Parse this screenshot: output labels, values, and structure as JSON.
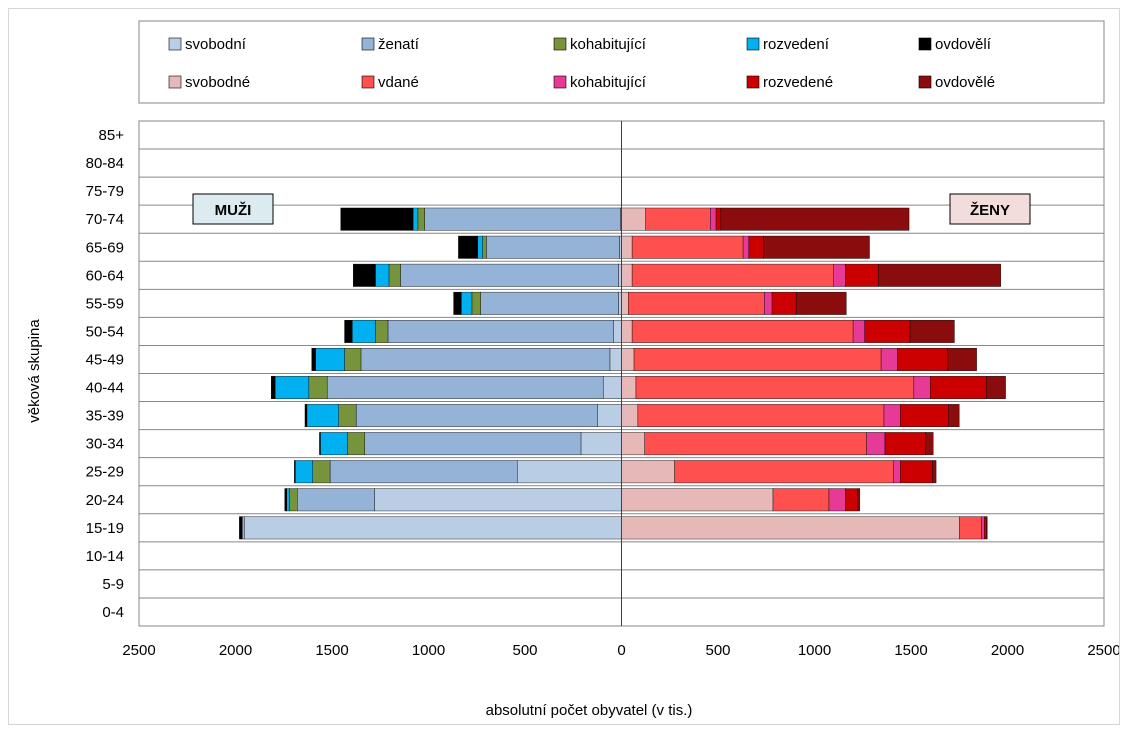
{
  "chart_data": {
    "type": "bar",
    "orientation": "horizontal",
    "stacked": true,
    "xlabel": "absolutní počet obyvatel (v tis.)",
    "ylabel": "věková skupina",
    "xlim": [
      -2500,
      2500
    ],
    "xticks": [
      -2500,
      -2000,
      -1500,
      -1000,
      -500,
      0,
      500,
      1000,
      1500,
      2000,
      2500
    ],
    "xtick_labels": [
      "2500",
      "2000",
      "1500",
      "1000",
      "500",
      "0",
      "500",
      "1000",
      "1500",
      "2000",
      "2500"
    ],
    "grid": true,
    "legend_position": "top",
    "categories": [
      "0-4",
      "5-9",
      "10-14",
      "15-19",
      "20-24",
      "25-29",
      "30-34",
      "35-39",
      "40-44",
      "45-49",
      "50-54",
      "55-59",
      "60-64",
      "65-69",
      "70-74",
      "75-79",
      "80-84",
      "85+"
    ],
    "side_labels": {
      "left": "MUŽI",
      "right": "ŽENY"
    },
    "men_series": [
      {
        "name": "svobodní",
        "color": "#b9cde5",
        "values": [
          0,
          0,
          0,
          1955,
          1280,
          540,
          210,
          125,
          95,
          60,
          40,
          15,
          15,
          10,
          5,
          0,
          0,
          0
        ]
      },
      {
        "name": "ženatí",
        "color": "#95b3d7",
        "values": [
          0,
          0,
          0,
          10,
          400,
          970,
          1120,
          1250,
          1430,
          1290,
          1170,
          715,
          1130,
          690,
          1015,
          0,
          0,
          0
        ]
      },
      {
        "name": "kohabitující",
        "color": "#77933c",
        "values": [
          0,
          0,
          0,
          0,
          40,
          90,
          90,
          90,
          95,
          85,
          65,
          45,
          60,
          20,
          35,
          0,
          0,
          0
        ]
      },
      {
        "name": "rozvedení",
        "color": "#00b0f0",
        "values": [
          0,
          0,
          0,
          0,
          15,
          90,
          140,
          165,
          175,
          150,
          120,
          55,
          70,
          25,
          25,
          0,
          0,
          0
        ]
      },
      {
        "name": "ovdovělí",
        "color": "#000000",
        "values": [
          0,
          0,
          0,
          15,
          10,
          5,
          5,
          10,
          20,
          20,
          40,
          40,
          115,
          100,
          375,
          0,
          0,
          0
        ]
      }
    ],
    "women_series": [
      {
        "name": "svobodné",
        "color": "#e6b9b8",
        "values": [
          0,
          0,
          0,
          1750,
          785,
          275,
          120,
          85,
          75,
          65,
          55,
          35,
          55,
          55,
          125,
          0,
          0,
          0
        ]
      },
      {
        "name": "vdané",
        "color": "#ff5050",
        "values": [
          0,
          0,
          0,
          115,
          290,
          1135,
          1150,
          1275,
          1440,
          1280,
          1145,
          705,
          1045,
          575,
          335,
          0,
          0,
          0
        ]
      },
      {
        "name": "kohabitující",
        "color": "#e63a96",
        "values": [
          0,
          0,
          0,
          15,
          85,
          35,
          95,
          85,
          85,
          85,
          60,
          40,
          60,
          30,
          30,
          0,
          0,
          0
        ]
      },
      {
        "name": "rozvedené",
        "color": "#cc0000",
        "values": [
          0,
          0,
          0,
          10,
          65,
          165,
          210,
          250,
          290,
          260,
          235,
          125,
          170,
          75,
          25,
          0,
          0,
          0
        ]
      },
      {
        "name": "ovdovělé",
        "color": "#8b0c0c",
        "values": [
          0,
          0,
          0,
          5,
          10,
          20,
          40,
          55,
          100,
          150,
          230,
          260,
          635,
          550,
          975,
          0,
          0,
          0
        ]
      }
    ]
  }
}
